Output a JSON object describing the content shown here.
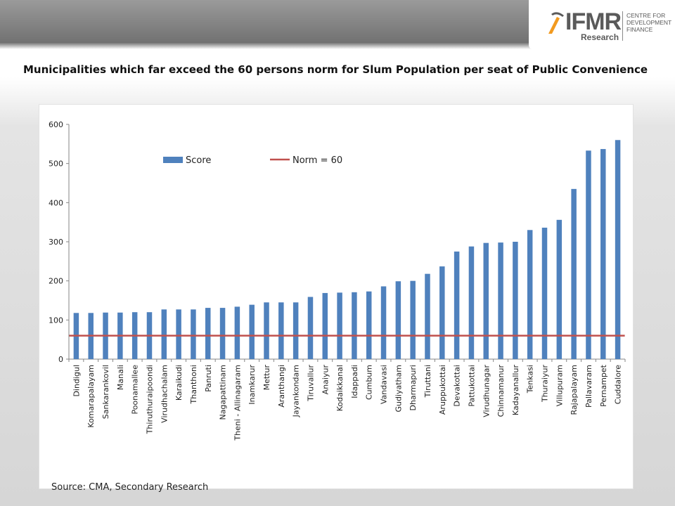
{
  "header": {
    "logo_text": "IFMR",
    "logo_sub": "Research",
    "logo_centre_lines": [
      "CENTRE FOR",
      "DEVELOPMENT",
      "FINANCE"
    ]
  },
  "colors": {
    "bar": "#4f81bd",
    "norm_line": "#c0504d",
    "logo_accent": "#f29a1f"
  },
  "slide": {
    "title": "Municipalities which far exceed the  60 persons norm for Slum Population per seat of Public Convenience",
    "source": "Source: CMA, Secondary Research"
  },
  "chart_data": {
    "type": "bar",
    "title": "",
    "xlabel": "",
    "ylabel": "",
    "ylim": [
      0,
      600
    ],
    "yticks": [
      0,
      100,
      200,
      300,
      400,
      500,
      600
    ],
    "grid": false,
    "legend_position": "top",
    "categories": [
      "Dindigul",
      "Komarapalayam",
      "Sankarankovil",
      "Manali",
      "Poonamallee",
      "Thiruthuraipoondi",
      "Virudhachalam",
      "Karaikudi",
      "Thanthoni",
      "Panruti",
      "Nagapattinam",
      "Theni - Allinagaram",
      "Inamkarur",
      "Mettur",
      "Aranthangi",
      "Jayankondam",
      "Tiruvallur",
      "Anaiyur",
      "Kodaikkanal",
      "Idappadi",
      "Cumbum",
      "Vandavasi",
      "Gudiyatham",
      "Dharmapuri",
      "Tiruttani",
      "Aruppukottai",
      "Devakottai",
      "Pattukottai",
      "Virudhunagar",
      "Chinnamanur",
      "Kadayanallur",
      "Tenkasi",
      "Thuraiyur",
      "Villupuram",
      "Rajapalayam",
      "Pallavaram",
      "Pernampet",
      "Cuddalore"
    ],
    "series": [
      {
        "name": "Score",
        "type": "bar",
        "values": [
          118,
          118,
          119,
          119,
          120,
          120,
          127,
          127,
          127,
          131,
          131,
          134,
          139,
          145,
          145,
          145,
          159,
          169,
          170,
          171,
          173,
          186,
          199,
          200,
          218,
          237,
          275,
          288,
          297,
          298,
          300,
          330,
          336,
          356,
          435,
          533,
          537,
          560
        ]
      },
      {
        "name": "Norm = 60",
        "type": "line",
        "values": [
          60,
          60,
          60,
          60,
          60,
          60,
          60,
          60,
          60,
          60,
          60,
          60,
          60,
          60,
          60,
          60,
          60,
          60,
          60,
          60,
          60,
          60,
          60,
          60,
          60,
          60,
          60,
          60,
          60,
          60,
          60,
          60,
          60,
          60,
          60,
          60,
          60,
          60
        ]
      }
    ]
  }
}
